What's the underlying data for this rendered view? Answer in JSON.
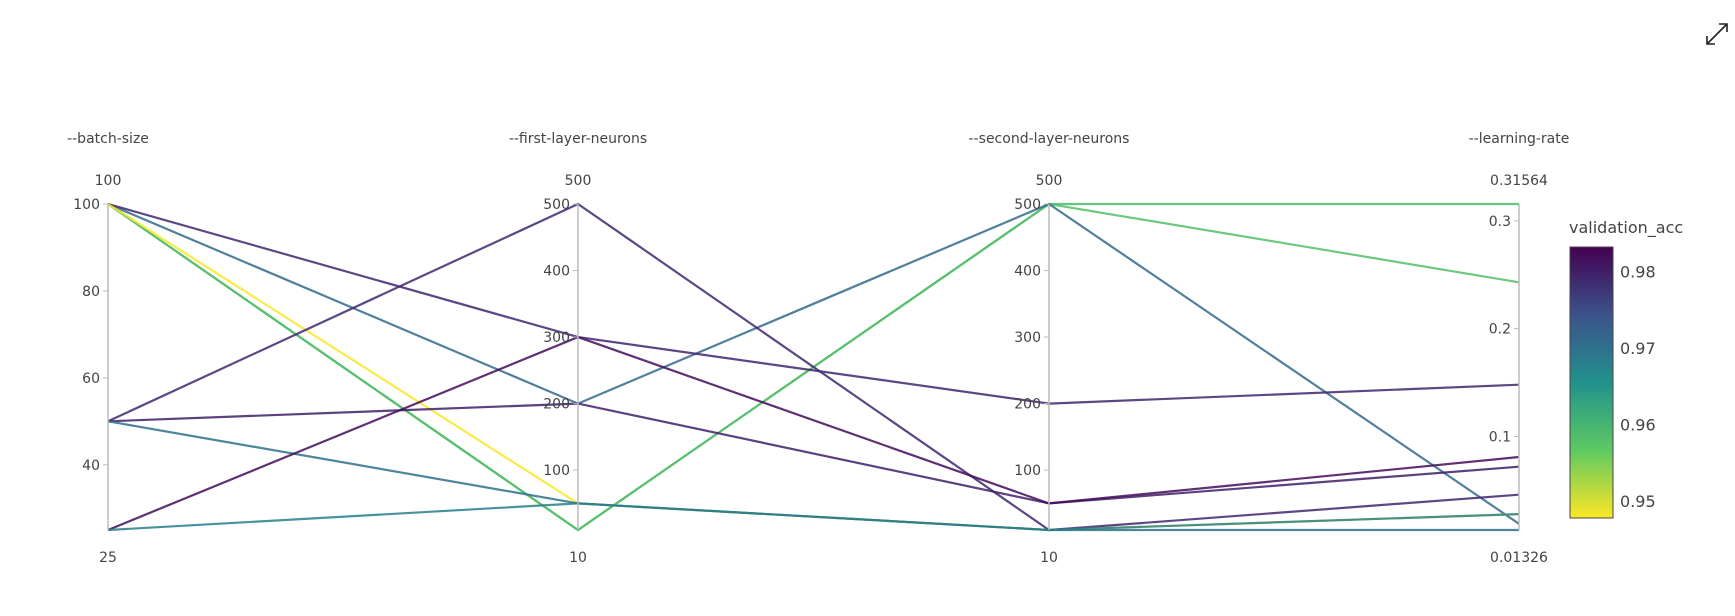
{
  "toolbar": {
    "expand_icon": "expand-diagonal-arrows-icon"
  },
  "chart_data": {
    "type": "parallel_coordinates",
    "dimensions": [
      {
        "label": "--batch-size",
        "range": [
          25,
          100
        ],
        "range_labels": [
          "100",
          "25"
        ],
        "ticks": [
          40,
          60,
          80,
          100
        ]
      },
      {
        "label": "--first-layer-neurons",
        "range": [
          10,
          500
        ],
        "range_labels": [
          "500",
          "10"
        ],
        "ticks": [
          100,
          200,
          300,
          400,
          500
        ]
      },
      {
        "label": "--second-layer-neurons",
        "range": [
          10,
          500
        ],
        "range_labels": [
          "500",
          "10"
        ],
        "ticks": [
          100,
          200,
          300,
          400,
          500
        ]
      },
      {
        "label": "--learning-rate",
        "range": [
          0.01326,
          0.31564
        ],
        "range_labels": [
          "0.31564",
          "0.01326"
        ],
        "ticks": [
          0.1,
          0.2,
          0.3
        ]
      }
    ],
    "color": {
      "title": "validation_acc",
      "colorscale": "viridis-reversed",
      "range": [
        0.9478,
        0.9832
      ],
      "ticks": [
        0.95,
        0.96,
        0.97,
        0.98
      ]
    },
    "lines": [
      {
        "values": [
          100,
          10,
          500,
          0.31564
        ],
        "validation_acc": 0.959
      },
      {
        "values": [
          100,
          10,
          500,
          0.243
        ],
        "validation_acc": 0.958
      },
      {
        "values": [
          100,
          200,
          500,
          0.019
        ],
        "validation_acc": 0.971
      },
      {
        "values": [
          100,
          300,
          200,
          0.148
        ],
        "validation_acc": 0.979
      },
      {
        "values": [
          100,
          50,
          10,
          0.028
        ],
        "validation_acc": 0.948
      },
      {
        "values": [
          50,
          500,
          10,
          0.046
        ],
        "validation_acc": 0.979
      },
      {
        "values": [
          50,
          200,
          50,
          0.072
        ],
        "validation_acc": 0.98
      },
      {
        "values": [
          50,
          50,
          10,
          0.01326
        ],
        "validation_acc": 0.97
      },
      {
        "values": [
          25,
          300,
          50,
          0.081
        ],
        "validation_acc": 0.982
      },
      {
        "values": [
          25,
          50,
          10,
          0.028
        ],
        "validation_acc": 0.968
      }
    ]
  }
}
